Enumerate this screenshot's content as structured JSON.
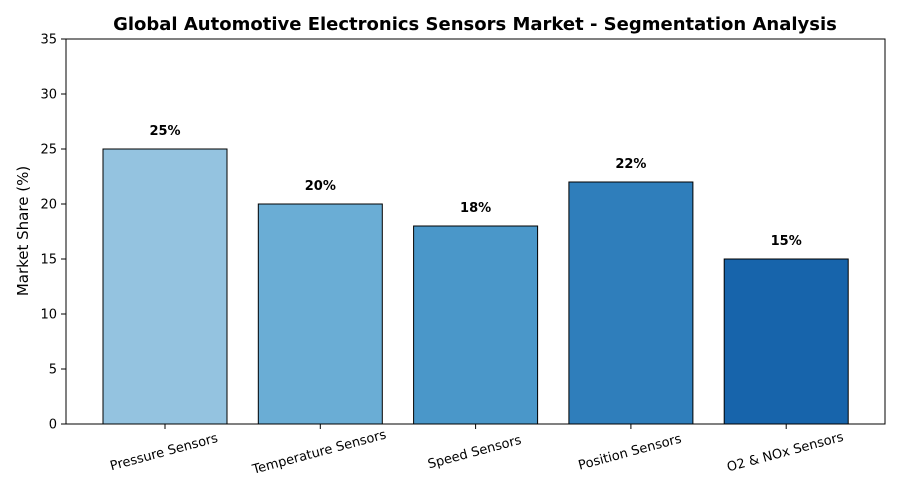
{
  "chart_data": {
    "type": "bar",
    "title": "Global Automotive Electronics Sensors Market - Segmentation Analysis",
    "xlabel": "",
    "ylabel": "Market Share (%)",
    "ylim": [
      0,
      35
    ],
    "yticks": [
      0,
      5,
      10,
      15,
      20,
      25,
      30,
      35
    ],
    "categories": [
      "Pressure Sensors",
      "Temperature Sensors",
      "Speed Sensors",
      "Position Sensors",
      "O2 & NOx Sensors"
    ],
    "values": [
      25,
      20,
      18,
      22,
      15
    ],
    "value_labels": [
      "25%",
      "20%",
      "18%",
      "22%",
      "15%"
    ],
    "colors": [
      "#94c3e0",
      "#6aadd5",
      "#4a97c9",
      "#2f7ebb",
      "#1764ab"
    ],
    "edge_color": "#000000",
    "grid": false,
    "legend": "none"
  }
}
